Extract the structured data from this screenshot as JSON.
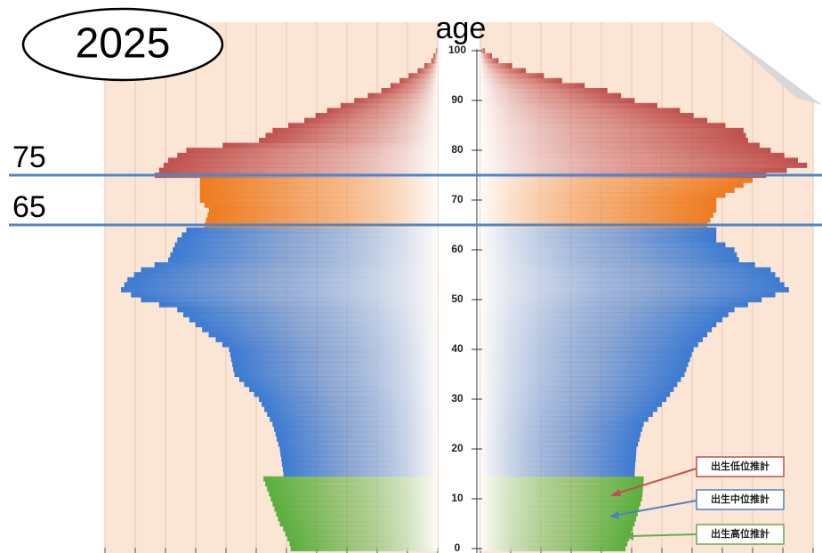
{
  "chart_data": {
    "type": "pyramid",
    "title": "2025",
    "ylabel": "age",
    "x": [
      0,
      1,
      2,
      3,
      4,
      5,
      6,
      7,
      8,
      9,
      10,
      11,
      12,
      13,
      14,
      15,
      16,
      17,
      18,
      19,
      20,
      21,
      22,
      23,
      24,
      25,
      26,
      27,
      28,
      29,
      30,
      31,
      32,
      33,
      34,
      35,
      36,
      37,
      38,
      39,
      40,
      41,
      42,
      43,
      44,
      45,
      46,
      47,
      48,
      49,
      50,
      51,
      52,
      53,
      54,
      55,
      56,
      57,
      58,
      59,
      60,
      61,
      62,
      63,
      64,
      65,
      66,
      67,
      68,
      69,
      70,
      71,
      72,
      73,
      74,
      75,
      76,
      77,
      78,
      79,
      80,
      81,
      82,
      83,
      84,
      85,
      86,
      87,
      88,
      89,
      90,
      91,
      92,
      93,
      94,
      95,
      96,
      97,
      98,
      99,
      100
    ],
    "series": [
      {
        "side": "left",
        "values": [
          486,
          490,
          497,
          504,
          511,
          522,
          528,
          534,
          540,
          546,
          552,
          558,
          564,
          570,
          576,
          510,
          512,
          515,
          517,
          520,
          522,
          527,
          532,
          536,
          541,
          546,
          555,
          564,
          573,
          582,
          591,
          607,
          623,
          640,
          656,
          672,
          676,
          679,
          683,
          686,
          690,
          712,
          734,
          757,
          779,
          801,
          821,
          841,
          861,
          921,
          981,
          1014,
          1047,
          1036,
          1026,
          1004,
          981,
          936,
          891,
          884,
          876,
          869,
          861,
          846,
          831,
          771,
          766,
          761,
          756,
          771,
          786,
          786,
          786,
          786,
          786,
          936,
          921,
          906,
          891,
          861,
          831,
          711,
          591,
          569,
          546,
          494,
          441,
          404,
          366,
          321,
          276,
          231,
          186,
          156,
          126,
          96,
          66,
          44,
          21,
          14,
          6
        ]
      },
      {
        "side": "right",
        "values": [
          480,
          486,
          492,
          498,
          504,
          510,
          515,
          520,
          524,
          529,
          534,
          536,
          537,
          539,
          540,
          510,
          511,
          512,
          514,
          515,
          516,
          521,
          526,
          530,
          535,
          540,
          555,
          570,
          585,
          600,
          615,
          627,
          639,
          651,
          663,
          675,
          681,
          687,
          693,
          699,
          705,
          720,
          735,
          750,
          765,
          780,
          800,
          820,
          840,
          885,
          930,
          975,
          1020,
          1005,
          990,
          975,
          960,
          908,
          855,
          848,
          840,
          810,
          780,
          780,
          780,
          750,
          760,
          770,
          780,
          780,
          780,
          810,
          840,
          870,
          900,
          945,
          1013,
          1080,
          1050,
          1005,
          960,
          923,
          885,
          878,
          870,
          810,
          750,
          705,
          660,
          585,
          510,
          465,
          420,
          345,
          270,
          210,
          150,
          105,
          60,
          38,
          15
        ]
      }
    ],
    "group_starts": [
      0,
      15,
      65,
      75
    ],
    "group_colors": [
      "#5aae3c",
      "#3c7ad2",
      "#ee7a1e",
      "#c0504d"
    ],
    "ylim": [
      0,
      100
    ],
    "yticks": [
      0,
      10,
      20,
      30,
      40,
      50,
      60,
      70,
      80,
      90,
      100
    ],
    "xlim": [
      0,
      1100
    ],
    "xticks": [
      0,
      100,
      200,
      300,
      400,
      500,
      600,
      700,
      800,
      900,
      1000,
      1100
    ],
    "grid": true,
    "hlines": [
      75,
      65
    ],
    "hline_color": "#4f86c6",
    "legend": [
      "出生低位推計",
      "出生中位推計",
      "出生高位推計"
    ],
    "legend_colors": [
      "#c0504d",
      "#4f81bd",
      "#6aa84f"
    ]
  }
}
